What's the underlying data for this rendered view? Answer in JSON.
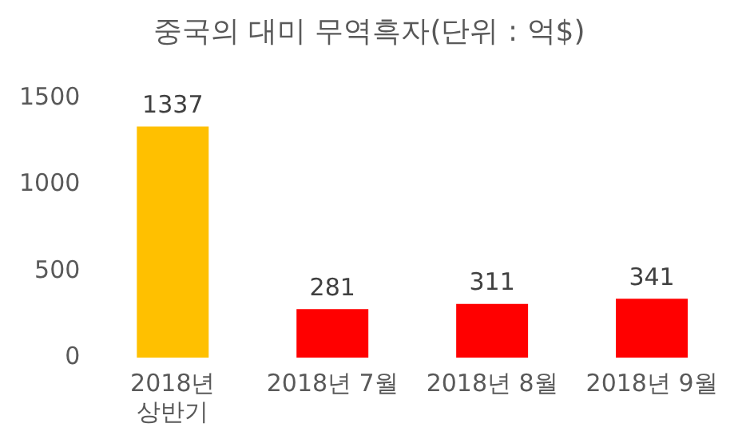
{
  "chart_data": {
    "type": "bar",
    "title": "중국의 대미 무역흑자(단위 : 억$)",
    "categories": [
      "2018년 상반기",
      "2018년 7월",
      "2018년 8월",
      "2018년 9월"
    ],
    "values": [
      1337,
      281,
      311,
      341
    ],
    "colors": [
      "#ffc000",
      "#ff0000",
      "#ff0000",
      "#ff0000"
    ],
    "ylim": [
      0,
      1500
    ],
    "yticks": [
      0,
      500,
      1000,
      1500
    ],
    "grid": false,
    "legend": false,
    "data_labels": true
  }
}
